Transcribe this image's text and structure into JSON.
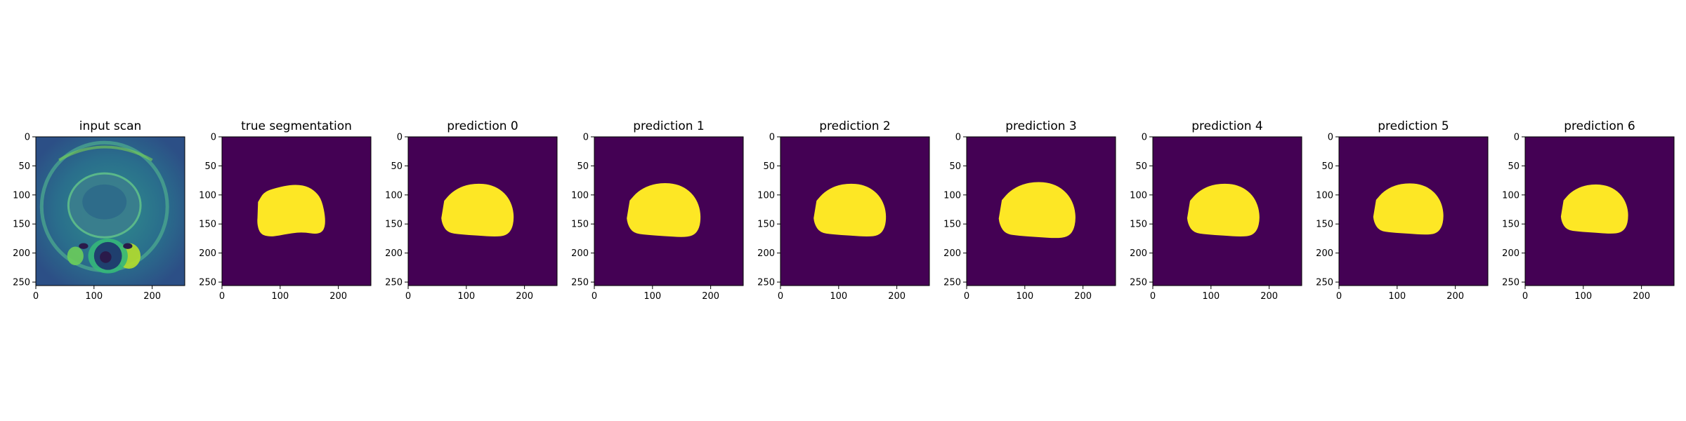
{
  "panels": [
    {
      "title": "input scan",
      "kind": "scan"
    },
    {
      "title": "true segmentation",
      "kind": "mask"
    },
    {
      "title": "prediction 0",
      "kind": "mask"
    },
    {
      "title": "prediction 1",
      "kind": "mask"
    },
    {
      "title": "prediction 2",
      "kind": "mask"
    },
    {
      "title": "prediction 3",
      "kind": "mask"
    },
    {
      "title": "prediction 4",
      "kind": "mask"
    },
    {
      "title": "prediction 5",
      "kind": "mask"
    },
    {
      "title": "prediction 6",
      "kind": "mask"
    }
  ],
  "axes": {
    "x_ticks": [
      "0",
      "100",
      "200"
    ],
    "x_tick_values": [
      0,
      100,
      200
    ],
    "y_ticks": [
      "0",
      "50",
      "100",
      "150",
      "200",
      "250"
    ],
    "y_tick_values": [
      0,
      50,
      100,
      150,
      200,
      250
    ],
    "range": [
      0,
      256
    ]
  },
  "colors": {
    "background": "#440154",
    "mask": "#fde725",
    "scan_dark": "#2b6f8a",
    "scan_mid": "#23a884",
    "scan_bright": "#b5de2b"
  }
}
